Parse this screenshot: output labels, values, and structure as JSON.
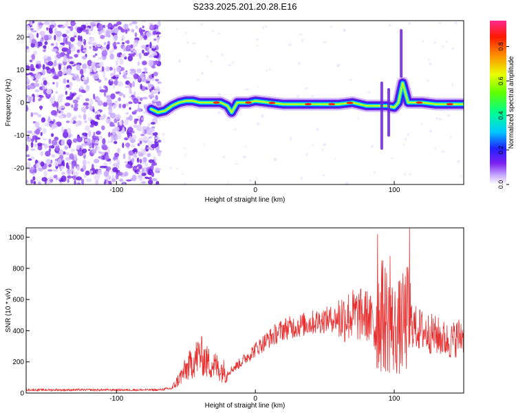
{
  "figure_title": "S233.2025.201.20.28.E16",
  "chart_data": [
    {
      "type": "heatmap",
      "title": "S233.2025.201.20.28.E16",
      "xlabel": "Height of straight line (km)",
      "ylabel": "Frequency (Hz)",
      "xlim": [
        -165,
        150
      ],
      "ylim": [
        -25,
        25
      ],
      "xticks": [
        -100,
        0,
        100
      ],
      "yticks": [
        -20,
        -10,
        0,
        10,
        20
      ],
      "noise_region_x": [
        -165,
        -75
      ],
      "ridge": {
        "x": [
          -75,
          -70,
          -65,
          -60,
          -55,
          -50,
          -45,
          -40,
          -35,
          -30,
          -25,
          -20,
          -17,
          -13,
          -10,
          -5,
          0,
          10,
          20,
          30,
          40,
          50,
          60,
          70,
          75,
          80,
          85,
          90,
          95,
          100,
          103,
          106,
          110,
          120,
          130,
          140,
          150
        ],
        "frequency_hz": [
          -2,
          -3,
          -2.5,
          -1,
          0,
          0.5,
          0.5,
          0,
          0,
          0,
          0,
          -1,
          -3,
          0,
          0,
          0,
          0.5,
          0,
          -0.5,
          -0.5,
          -0.5,
          -0.5,
          -0.5,
          0,
          -0.5,
          -1,
          -1,
          -1,
          -1,
          -1.5,
          0,
          6,
          0,
          0,
          -0.5,
          -0.5,
          -0.5
        ]
      },
      "colorbar": {
        "label": "Normalized spectral amplitude",
        "range": [
          0,
          0.95
        ],
        "ticks": [
          0.0,
          0.2,
          0.4,
          0.6,
          0.8
        ]
      }
    },
    {
      "type": "line",
      "xlabel": "Height of straight line (km)",
      "ylabel": "SNR (10 * v/v)",
      "xlim": [
        -165,
        150
      ],
      "ylim": [
        0,
        1060
      ],
      "xticks": [
        -100,
        0,
        100
      ],
      "yticks": [
        0,
        200,
        400,
        600,
        800,
        1000
      ],
      "color": "#e83030",
      "envelope": {
        "x": [
          -165,
          -100,
          -70,
          -60,
          -50,
          -40,
          -35,
          -30,
          -20,
          -10,
          0,
          10,
          20,
          30,
          40,
          50,
          60,
          70,
          80,
          85,
          90,
          95,
          100,
          105,
          110,
          115,
          120,
          130,
          140,
          150
        ],
        "y": [
          20,
          20,
          20,
          30,
          150,
          250,
          200,
          180,
          130,
          200,
          280,
          350,
          410,
          430,
          450,
          470,
          480,
          500,
          500,
          450,
          500,
          480,
          400,
          430,
          480,
          420,
          400,
          370,
          330,
          380
        ]
      },
      "peaks": {
        "x": [
          88,
          91,
          97,
          111
        ],
        "y": [
          1020,
          850,
          880,
          1060
        ]
      }
    }
  ]
}
